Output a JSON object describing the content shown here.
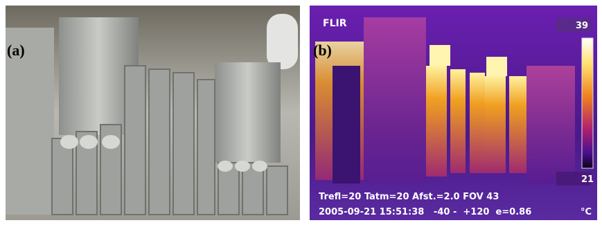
{
  "panels": [
    {
      "label": "(a)"
    },
    {
      "label": "(b)",
      "brand": "FLIR",
      "scale_max": "39",
      "scale_min": "21",
      "unit": "°C",
      "info_line_1": "Trefl=20 Tatm=20 Afst.=2.0 FOV 43",
      "info_line_2": "2005-09-21 15:51:38   -40 -  +120  e=0.86"
    }
  ]
}
